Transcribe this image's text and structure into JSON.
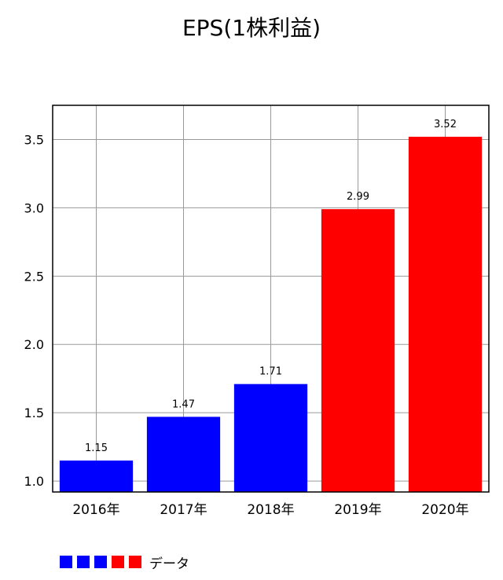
{
  "chart_data": {
    "type": "bar",
    "title": "EPS(1株利益)",
    "categories": [
      "2016年",
      "2017年",
      "2018年",
      "2019年",
      "2020年"
    ],
    "values": [
      1.15,
      1.47,
      1.71,
      2.99,
      3.52
    ],
    "value_labels": [
      "1.15",
      "1.47",
      "1.71",
      "2.99",
      "3.52"
    ],
    "bar_colors": [
      "#0000ff",
      "#0000ff",
      "#0000ff",
      "#ff0000",
      "#ff0000"
    ],
    "ylim": [
      0.92,
      3.75
    ],
    "yticks": [
      1.0,
      1.5,
      2.0,
      2.5,
      3.0,
      3.5
    ],
    "ytick_labels": [
      "1.0",
      "1.5",
      "2.0",
      "2.5",
      "3.0",
      "3.5"
    ],
    "grid": true,
    "legend_position": "bottom-left",
    "legend": {
      "label": "データ",
      "swatch_colors": [
        "#0000ff",
        "#0000ff",
        "#0000ff",
        "#ff0000",
        "#ff0000"
      ]
    }
  }
}
